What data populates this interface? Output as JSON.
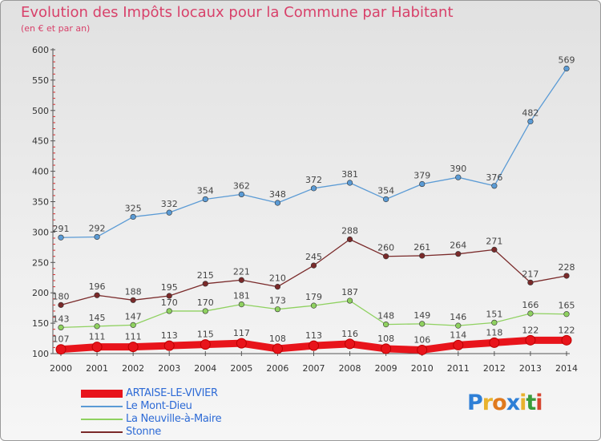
{
  "title": "Evolution des Impôts locaux pour la Commune par Habitant",
  "subtitle": "(en € et par an)",
  "brand": {
    "text": "Proxiti",
    "letters": [
      "P",
      "r",
      "o",
      "x",
      "i",
      "t",
      "i"
    ],
    "colors": [
      "#2e7fd6",
      "#e8b22e",
      "#e07a1e",
      "#2e7fd6",
      "#e8b22e",
      "#3a9c3a",
      "#d6452e"
    ]
  },
  "chart_data": {
    "type": "line",
    "title": "Evolution des Impôts locaux pour la Commune par Habitant",
    "subtitle": "(en € et par an)",
    "x": [
      "2000",
      "2001",
      "2002",
      "2003",
      "2004",
      "2005",
      "2006",
      "2007",
      "2008",
      "2009",
      "2010",
      "2011",
      "2012",
      "2013",
      "2014"
    ],
    "ylim": [
      100,
      600
    ],
    "yticks": [
      100,
      150,
      200,
      250,
      300,
      350,
      400,
      450,
      500,
      550,
      600
    ],
    "grid": false,
    "legend_position": "bottom-left",
    "series": [
      {
        "name": "ARTAISE-LE-VIVIER",
        "color": "#e8141b",
        "values": [
          107,
          111,
          111,
          113,
          115,
          117,
          108,
          113,
          116,
          108,
          106,
          114,
          118,
          122,
          122
        ]
      },
      {
        "name": "Le Mont-Dieu",
        "color": "#5b9bd5",
        "values": [
          291,
          292,
          325,
          332,
          354,
          362,
          348,
          372,
          381,
          354,
          379,
          390,
          376,
          482,
          569
        ]
      },
      {
        "name": "La Neuville-à-Maire",
        "color": "#8fd160",
        "values": [
          143,
          145,
          147,
          170,
          170,
          181,
          173,
          179,
          187,
          148,
          149,
          146,
          151,
          166,
          165
        ]
      },
      {
        "name": "Stonne",
        "color": "#7a2a2a",
        "values": [
          180,
          196,
          188,
          195,
          215,
          221,
          210,
          245,
          288,
          260,
          261,
          264,
          271,
          217,
          228
        ]
      }
    ]
  }
}
